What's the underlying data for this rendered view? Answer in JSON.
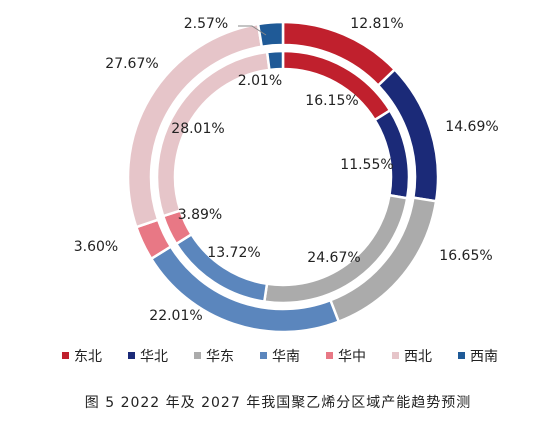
{
  "chart_data": {
    "type": "pie",
    "subtype": "double-donut",
    "caption": "图 5 2022 年及 2027 年我国聚乙烯分区域产能趋势预测",
    "legend_position": "bottom",
    "categories": [
      "东北",
      "华北",
      "华东",
      "华南",
      "华中",
      "西北",
      "西南"
    ],
    "colors": [
      "#c0202d",
      "#1b2a78",
      "#ababab",
      "#5b86bd",
      "#e87885",
      "#e6c5c9",
      "#1f5a97"
    ],
    "series": [
      {
        "ring": "outer",
        "values": [
          12.81,
          14.69,
          16.65,
          22.01,
          3.6,
          27.67,
          2.57
        ],
        "labels": [
          "12.81%",
          "14.69%",
          "16.65%",
          "22.01%",
          "3.60%",
          "27.67%",
          "2.57%"
        ]
      },
      {
        "ring": "inner",
        "values": [
          16.15,
          11.55,
          24.67,
          13.72,
          3.89,
          28.01,
          2.01
        ],
        "labels": [
          "16.15%",
          "11.55%",
          "24.67%",
          "13.72%",
          "3.89%",
          "28.01%",
          "2.01%"
        ]
      }
    ]
  }
}
